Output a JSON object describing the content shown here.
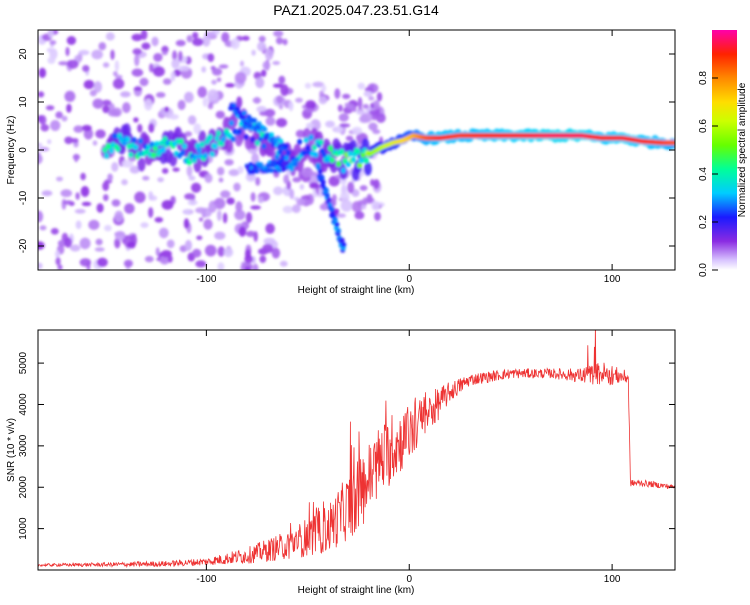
{
  "title": "PAZ1.2025.047.23.51.G14",
  "chart_data": [
    {
      "type": "heatmap",
      "xlabel": "Height of straight line (km)",
      "ylabel": "Frequency (Hz)",
      "xlim": [
        -183,
        131
      ],
      "ylim": [
        -25,
        25
      ],
      "xticks": [
        -100,
        0,
        100
      ],
      "yticks": [
        -20,
        -10,
        0,
        10,
        20
      ],
      "colorbar": {
        "label": "Normalized spectral amplitude",
        "range": [
          0,
          1
        ],
        "ticks": [
          "0.0",
          "0.2",
          "0.4",
          "0.6",
          "0.8"
        ],
        "tick_values": [
          0.0,
          0.2,
          0.4,
          0.6,
          0.8
        ]
      },
      "ridge": [
        {
          "x": -150,
          "y": 0.5,
          "a": 0.35
        },
        {
          "x": -145,
          "y": 2.5,
          "a": 0.4
        },
        {
          "x": -140,
          "y": 1.5,
          "a": 0.45
        },
        {
          "x": -135,
          "y": 0.5,
          "a": 0.4
        },
        {
          "x": -128,
          "y": -1.0,
          "a": 0.35
        },
        {
          "x": -122,
          "y": 0.0,
          "a": 0.45
        },
        {
          "x": -115,
          "y": 1.0,
          "a": 0.4
        },
        {
          "x": -108,
          "y": -1.0,
          "a": 0.35
        },
        {
          "x": -100,
          "y": 0.5,
          "a": 0.4
        },
        {
          "x": -92,
          "y": 2.0,
          "a": 0.35
        },
        {
          "x": -85,
          "y": 5.0,
          "a": 0.3
        },
        {
          "x": -78,
          "y": 4.0,
          "a": 0.3
        },
        {
          "x": -72,
          "y": 2.0,
          "a": 0.35
        },
        {
          "x": -65,
          "y": 0.0,
          "a": 0.3
        },
        {
          "x": -58,
          "y": -1.5,
          "a": 0.35
        },
        {
          "x": -50,
          "y": 1.0,
          "a": 0.3
        },
        {
          "x": -45,
          "y": 0.0,
          "a": 0.35
        },
        {
          "x": -38,
          "y": -1.0,
          "a": 0.4
        },
        {
          "x": -32,
          "y": -2.5,
          "a": 0.45
        },
        {
          "x": -26,
          "y": -2.0,
          "a": 0.5
        },
        {
          "x": -20,
          "y": -1.0,
          "a": 0.55
        },
        {
          "x": -14,
          "y": 0.5,
          "a": 0.6
        },
        {
          "x": -8,
          "y": 1.5,
          "a": 0.65
        },
        {
          "x": -3,
          "y": 2.0,
          "a": 0.7
        },
        {
          "x": 2,
          "y": 3.0,
          "a": 0.75
        },
        {
          "x": 8,
          "y": 2.5,
          "a": 0.85
        },
        {
          "x": 15,
          "y": 2.5,
          "a": 0.9
        },
        {
          "x": 25,
          "y": 3.0,
          "a": 0.88
        },
        {
          "x": 40,
          "y": 3.0,
          "a": 0.9
        },
        {
          "x": 55,
          "y": 3.0,
          "a": 0.92
        },
        {
          "x": 70,
          "y": 3.0,
          "a": 0.95
        },
        {
          "x": 85,
          "y": 3.0,
          "a": 0.95
        },
        {
          "x": 95,
          "y": 2.5,
          "a": 0.9
        },
        {
          "x": 105,
          "y": 2.5,
          "a": 0.92
        },
        {
          "x": 115,
          "y": 1.8,
          "a": 0.9
        },
        {
          "x": 125,
          "y": 1.5,
          "a": 0.88
        },
        {
          "x": 131,
          "y": 1.5,
          "a": 0.85
        }
      ]
    },
    {
      "type": "line",
      "xlabel": "Height of straight line (km)",
      "ylabel": "SNR (10 * v/v)",
      "xlim": [
        -183,
        131
      ],
      "ylim": [
        0,
        5800
      ],
      "xticks": [
        -100,
        0,
        100
      ],
      "yticks": [
        1000,
        2000,
        3000,
        4000,
        5000
      ],
      "series": [
        {
          "color": "#ee3333",
          "envelope": [
            {
              "x": -183,
              "y": 120,
              "noise": 30
            },
            {
              "x": -150,
              "y": 130,
              "noise": 50
            },
            {
              "x": -120,
              "y": 150,
              "noise": 70
            },
            {
              "x": -100,
              "y": 200,
              "noise": 90
            },
            {
              "x": -80,
              "y": 350,
              "noise": 200
            },
            {
              "x": -60,
              "y": 600,
              "noise": 350
            },
            {
              "x": -40,
              "y": 1000,
              "noise": 600
            },
            {
              "x": -25,
              "y": 1800,
              "noise": 900
            },
            {
              "x": -15,
              "y": 2600,
              "noise": 900
            },
            {
              "x": 0,
              "y": 3300,
              "noise": 700
            },
            {
              "x": 10,
              "y": 3800,
              "noise": 500
            },
            {
              "x": 20,
              "y": 4300,
              "noise": 250
            },
            {
              "x": 30,
              "y": 4600,
              "noise": 150
            },
            {
              "x": 50,
              "y": 4750,
              "noise": 120
            },
            {
              "x": 70,
              "y": 4750,
              "noise": 120
            },
            {
              "x": 85,
              "y": 4700,
              "noise": 180
            },
            {
              "x": 95,
              "y": 4750,
              "noise": 300
            },
            {
              "x": 108,
              "y": 4650,
              "noise": 150
            },
            {
              "x": 109,
              "y": 2100,
              "noise": 80
            },
            {
              "x": 115,
              "y": 2100,
              "noise": 80
            },
            {
              "x": 131,
              "y": 2000,
              "noise": 60
            }
          ]
        }
      ]
    }
  ]
}
